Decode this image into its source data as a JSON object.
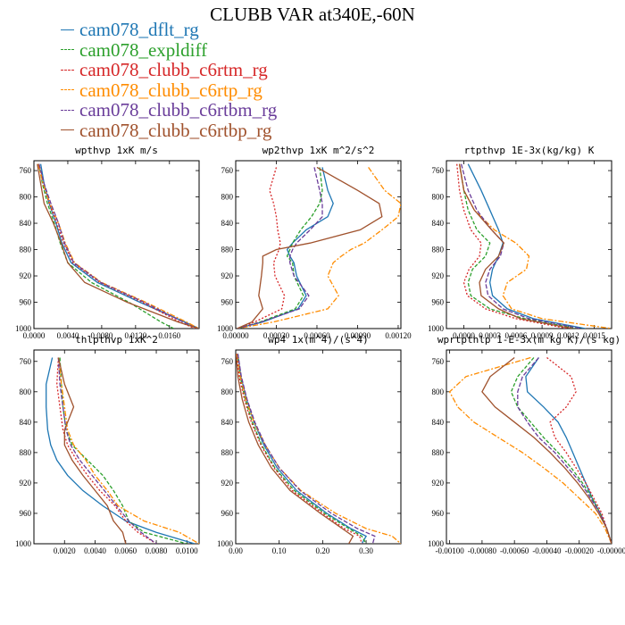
{
  "title": "CLUBB VAR at340E,-60N",
  "series_styles": [
    {
      "name": "cam078_dflt_rg",
      "color": "#1f77b4",
      "dash": ""
    },
    {
      "name": "cam078_expldiff",
      "color": "#2ca02c",
      "dash": "4,2"
    },
    {
      "name": "cam078_clubb_c6rtm_rg",
      "color": "#d62728",
      "dash": "2,2"
    },
    {
      "name": "cam078_clubb_c6rtp_rg",
      "color": "#ff8c00",
      "dash": "6,2,2,2"
    },
    {
      "name": "cam078_clubb_c6rtbm_rg",
      "color": "#6a3d9a",
      "dash": "5,2"
    },
    {
      "name": "cam078_clubb_c6rtbp_rg",
      "color": "#a0522d",
      "dash": ""
    }
  ],
  "chart_data": [
    {
      "type": "line",
      "title": "wpthvp   1xK m/s",
      "xlim": [
        0,
        0.0195
      ],
      "ylim": [
        1000,
        745
      ],
      "xticks": [
        0,
        0.004,
        0.008,
        0.012,
        0.016
      ],
      "xtick_labels": [
        "0.0000",
        "0.0040",
        "0.0080",
        "0.0120",
        "0.0160"
      ],
      "yticks": [
        760,
        800,
        840,
        880,
        920,
        960,
        1000
      ],
      "levels": [
        750,
        780,
        810,
        840,
        870,
        900,
        930,
        960,
        990,
        1000
      ],
      "series": [
        {
          "values": [
            0.0008,
            0.0012,
            0.0018,
            0.0026,
            0.0033,
            0.0044,
            0.0075,
            0.0125,
            0.0178,
            0.0195
          ]
        },
        {
          "values": [
            0.0006,
            0.001,
            0.0016,
            0.0024,
            0.0031,
            0.004,
            0.0068,
            0.0112,
            0.015,
            0.0165
          ]
        },
        {
          "values": [
            0.0006,
            0.0011,
            0.0018,
            0.0027,
            0.0035,
            0.0046,
            0.0078,
            0.0128,
            0.0172,
            0.019
          ]
        },
        {
          "values": [
            0.0005,
            0.0011,
            0.0019,
            0.0029,
            0.0037,
            0.0048,
            0.008,
            0.0132,
            0.018,
            0.0195
          ]
        },
        {
          "values": [
            0.0006,
            0.0012,
            0.002,
            0.0029,
            0.0036,
            0.0047,
            0.0079,
            0.013,
            0.0176,
            0.0193
          ]
        },
        {
          "values": [
            0.0004,
            0.0008,
            0.0012,
            0.0023,
            0.0032,
            0.004,
            0.006,
            0.011,
            0.017,
            0.0195
          ]
        }
      ]
    },
    {
      "type": "line",
      "title": "wp2thvp   1xK m^2/s^2",
      "xlim": [
        0,
        0.00122
      ],
      "ylim": [
        1000,
        745
      ],
      "xticks": [
        0,
        0.0003,
        0.0006,
        0.0009,
        0.0012
      ],
      "xtick_labels": [
        "0.00000",
        "0.00030",
        "0.00060",
        "0.00090",
        "0.00120"
      ],
      "yticks": [
        760,
        800,
        840,
        880,
        920,
        960,
        1000
      ],
      "levels": [
        755,
        790,
        810,
        830,
        850,
        870,
        880,
        890,
        900,
        920,
        950,
        970,
        990,
        1000
      ],
      "series": [
        {
          "values": [
            0.00064,
            0.00068,
            0.00072,
            0.00068,
            0.00052,
            0.00042,
            0.00038,
            0.0004,
            0.00043,
            0.00045,
            0.00052,
            0.00046,
            0.0002,
            1e-05
          ]
        },
        {
          "values": [
            0.00062,
            0.00064,
            0.00062,
            0.00056,
            0.00048,
            0.00042,
            0.0004,
            0.00038,
            0.00042,
            0.00043,
            0.0005,
            0.00044,
            0.00018,
            1e-05
          ]
        },
        {
          "values": [
            0.0003,
            0.00025,
            0.00028,
            0.0003,
            0.00031,
            0.00033,
            0.00032,
            0.0003,
            0.00028,
            0.00029,
            0.00036,
            0.00034,
            0.00014,
            1e-05
          ]
        },
        {
          "values": [
            0.00098,
            0.0011,
            0.00122,
            0.0012,
            0.00108,
            0.00095,
            0.00085,
            0.00078,
            0.00072,
            0.00068,
            0.00076,
            0.00068,
            0.00028,
            1e-05
          ]
        },
        {
          "values": [
            0.00058,
            0.00062,
            0.00064,
            0.00064,
            0.00055,
            0.00045,
            0.00042,
            0.0004,
            0.0004,
            0.00043,
            0.00054,
            0.00047,
            0.00019,
            1e-05
          ]
        },
        {
          "values": [
            0.0006,
            0.0009,
            0.00106,
            0.00108,
            0.00092,
            0.00055,
            0.0003,
            0.0002,
            0.0002,
            0.00019,
            0.00017,
            0.0002,
            0.00012,
            1e-05
          ]
        }
      ]
    },
    {
      "type": "line",
      "title": "rtpthvp   1E-3x(kg/kg) K",
      "xlim": [
        -0.0002,
        0.0017
      ],
      "ylim": [
        1000,
        745
      ],
      "xticks": [
        0,
        0.0003,
        0.0006,
        0.0009,
        0.0012,
        0.0015
      ],
      "xtick_labels": [
        "0.0000",
        "0.0003",
        "0.0006",
        "0.0009",
        "0.0012",
        "0.0015"
      ],
      "yticks": [
        760,
        800,
        840,
        880,
        920,
        960,
        1000
      ],
      "levels": [
        750,
        790,
        820,
        850,
        870,
        890,
        910,
        930,
        950,
        970,
        985,
        1000
      ],
      "series": [
        {
          "values": [
            5e-05,
            0.0002,
            0.0003,
            0.0004,
            0.00045,
            0.0004,
            0.00033,
            0.0003,
            0.00033,
            0.0005,
            0.0008,
            0.0014
          ]
        },
        {
          "values": [
            -5e-05,
            0.0,
            5e-05,
            0.00015,
            0.0003,
            0.00025,
            0.0001,
            5e-05,
            8e-05,
            0.0003,
            0.0007,
            0.0013
          ]
        },
        {
          "values": [
            -8e-05,
            -5e-05,
            0.0,
            8e-05,
            0.0002,
            0.00018,
            6e-05,
            0.0,
            4e-05,
            0.00025,
            0.0006,
            0.0012
          ]
        },
        {
          "values": [
            -5e-05,
            0.0,
            0.00012,
            0.00035,
            0.0006,
            0.00075,
            0.00072,
            0.0005,
            0.00045,
            0.00055,
            0.0009,
            0.0017
          ]
        },
        {
          "values": [
            -3e-05,
            5e-05,
            0.00015,
            0.00032,
            0.00046,
            0.00042,
            0.0003,
            0.00025,
            0.00028,
            0.00045,
            0.00075,
            0.00135
          ]
        },
        {
          "values": [
            -5e-05,
            0.0,
            0.00012,
            0.00032,
            0.00046,
            0.0004,
            0.00025,
            0.00018,
            0.0002,
            0.0004,
            0.00065,
            0.00125
          ]
        }
      ]
    },
    {
      "type": "line",
      "title": "thlpthvp   1xK^2",
      "xlim": [
        0,
        0.0108
      ],
      "ylim": [
        1000,
        745
      ],
      "xticks": [
        0.002,
        0.004,
        0.006,
        0.008,
        0.01
      ],
      "xtick_labels": [
        "0.0020",
        "0.0040",
        "0.0060",
        "0.0080",
        "0.0100"
      ],
      "yticks": [
        760,
        800,
        840,
        880,
        920,
        960,
        1000
      ],
      "levels": [
        755,
        790,
        820,
        850,
        870,
        890,
        910,
        930,
        950,
        970,
        985,
        1000
      ],
      "series": [
        {
          "values": [
            0.0012,
            0.0008,
            0.0008,
            0.0009,
            0.0011,
            0.0015,
            0.0022,
            0.0032,
            0.0045,
            0.006,
            0.008,
            0.0105
          ]
        },
        {
          "values": [
            0.0017,
            0.0018,
            0.0019,
            0.0021,
            0.0025,
            0.0035,
            0.0045,
            0.0052,
            0.0058,
            0.0062,
            0.0072,
            0.01
          ]
        },
        {
          "values": [
            0.0016,
            0.0015,
            0.0017,
            0.0019,
            0.0022,
            0.0028,
            0.0035,
            0.0043,
            0.0053,
            0.006,
            0.0068,
            0.008
          ]
        },
        {
          "values": [
            0.0016,
            0.0018,
            0.002,
            0.0022,
            0.0026,
            0.0034,
            0.004,
            0.0048,
            0.0055,
            0.0072,
            0.0095,
            0.0108
          ]
        },
        {
          "values": [
            0.0016,
            0.0017,
            0.0019,
            0.0021,
            0.0024,
            0.003,
            0.0038,
            0.0046,
            0.0054,
            0.0062,
            0.007,
            0.008
          ]
        },
        {
          "values": [
            0.0016,
            0.002,
            0.0026,
            0.002,
            0.002,
            0.0025,
            0.0032,
            0.004,
            0.0048,
            0.0052,
            0.0058,
            0.006
          ]
        }
      ]
    },
    {
      "type": "line",
      "title": "wp4   1x(m^4)/(s^4)",
      "xlim": [
        0,
        0.38
      ],
      "ylim": [
        1000,
        745
      ],
      "xticks": [
        0,
        0.1,
        0.2,
        0.3
      ],
      "xtick_labels": [
        "0.00",
        "0.10",
        "0.20",
        "0.30"
      ],
      "yticks": [
        760,
        800,
        840,
        880,
        920,
        960,
        1000
      ],
      "levels": [
        750,
        780,
        810,
        840,
        870,
        900,
        930,
        960,
        980,
        990,
        1000
      ],
      "series": [
        {
          "values": [
            0.005,
            0.012,
            0.025,
            0.042,
            0.065,
            0.095,
            0.14,
            0.21,
            0.265,
            0.3,
            0.29
          ]
        },
        {
          "values": [
            0.004,
            0.01,
            0.022,
            0.038,
            0.06,
            0.09,
            0.135,
            0.205,
            0.26,
            0.29,
            0.3
          ]
        },
        {
          "values": [
            0.002,
            0.008,
            0.02,
            0.036,
            0.058,
            0.088,
            0.13,
            0.2,
            0.25,
            0.285,
            0.29
          ]
        },
        {
          "values": [
            0.004,
            0.011,
            0.024,
            0.042,
            0.068,
            0.1,
            0.15,
            0.23,
            0.3,
            0.36,
            0.38
          ]
        },
        {
          "values": [
            0.005,
            0.013,
            0.026,
            0.044,
            0.068,
            0.1,
            0.148,
            0.22,
            0.28,
            0.32,
            0.315
          ]
        },
        {
          "values": [
            0.001,
            0.005,
            0.015,
            0.03,
            0.052,
            0.082,
            0.125,
            0.195,
            0.245,
            0.27,
            0.26
          ]
        }
      ]
    },
    {
      "type": "line",
      "title": "wprtpthlp   1-E-3x(m kg K)/(s kg)",
      "xlim": [
        -0.00102,
        0
      ],
      "ylim": [
        1000,
        745
      ],
      "xticks": [
        -0.001,
        -0.0008,
        -0.0006,
        -0.0004,
        -0.0002,
        0
      ],
      "xtick_labels": [
        "-0.00100",
        "-0.00080",
        "-0.00060",
        "-0.00040",
        "-0.00020",
        "-0.00000"
      ],
      "yticks": [
        760,
        800,
        840,
        880,
        920,
        960,
        1000
      ],
      "levels": [
        755,
        780,
        800,
        820,
        840,
        860,
        880,
        900,
        920,
        940,
        960,
        980,
        1000
      ],
      "series": [
        {
          "values": [
            -0.00045,
            -0.00053,
            -0.00052,
            -0.00042,
            -0.00033,
            -0.00028,
            -0.00024,
            -0.0002,
            -0.00016,
            -0.00012,
            -7e-05,
            -3e-05,
            0.0
          ]
        },
        {
          "values": [
            -0.00048,
            -0.00058,
            -0.00062,
            -0.00058,
            -0.0005,
            -0.00042,
            -0.00033,
            -0.00025,
            -0.00018,
            -0.00012,
            -7e-05,
            -3e-05,
            0.0
          ]
        },
        {
          "values": [
            -0.0004,
            -0.00025,
            -0.00022,
            -0.00028,
            -0.00038,
            -0.00035,
            -0.00028,
            -0.00022,
            -0.00016,
            -0.00011,
            -6e-05,
            -3e-05,
            0.0
          ]
        },
        {
          "values": [
            -0.0005,
            -0.0009,
            -0.001,
            -0.00095,
            -0.00085,
            -0.0007,
            -0.00055,
            -0.00042,
            -0.0003,
            -0.0002,
            -0.0001,
            -4e-05,
            0.0
          ]
        },
        {
          "values": [
            -0.00045,
            -0.00055,
            -0.00058,
            -0.00058,
            -0.00052,
            -0.00045,
            -0.00035,
            -0.00027,
            -0.00019,
            -0.00013,
            -7e-05,
            -3e-05,
            0.0
          ]
        },
        {
          "values": [
            -0.0006,
            -0.00075,
            -0.0008,
            -0.00072,
            -0.0006,
            -0.00048,
            -0.00038,
            -0.00029,
            -0.00021,
            -0.00014,
            -8e-05,
            -3e-05,
            0.0
          ]
        }
      ]
    }
  ]
}
